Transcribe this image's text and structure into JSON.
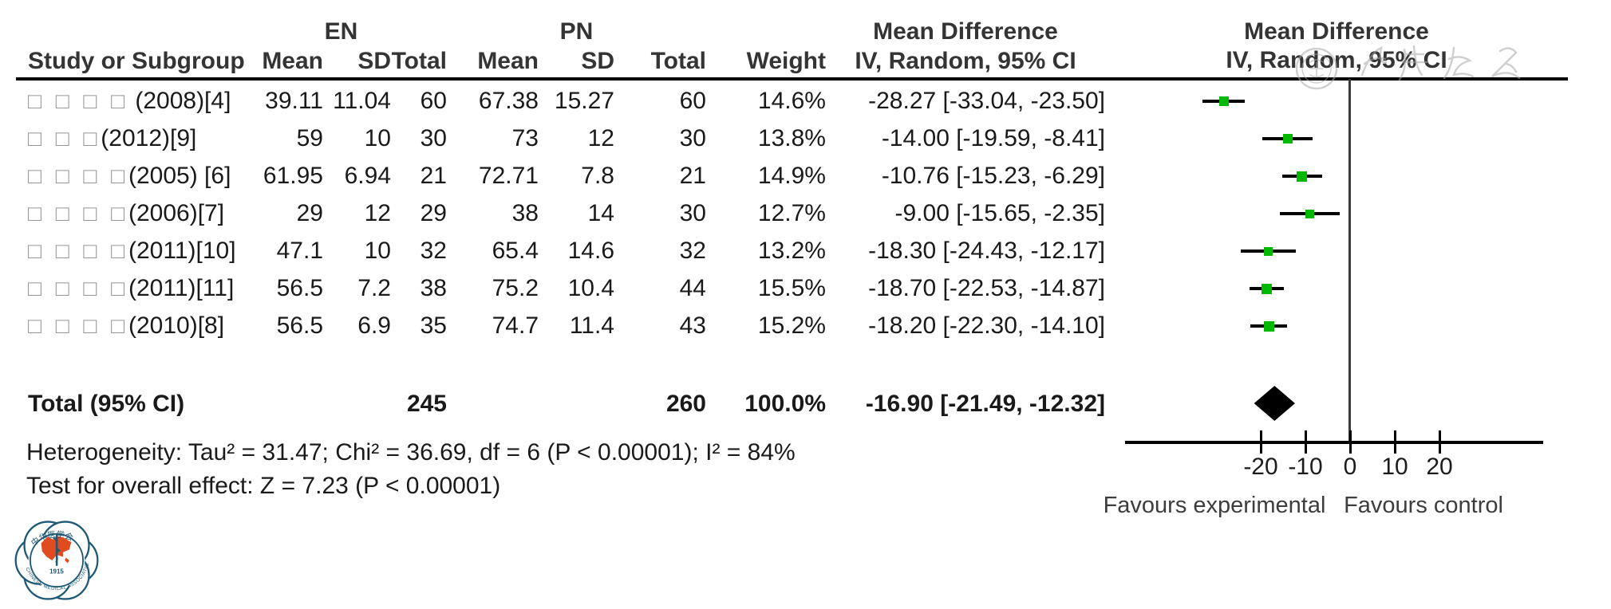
{
  "header": {
    "group1": "EN",
    "group2": "PN",
    "effect_title": "Mean Difference",
    "effect_sub": "IV, Random, 95% CI",
    "col_study": "Study or Subgroup",
    "col_mean": "Mean",
    "col_sd": "SD",
    "col_total": "Total",
    "col_weight": "Weight"
  },
  "chart_data": {
    "type": "forest",
    "effect_measure": "Mean Difference",
    "model": "IV, Random, 95% CI",
    "marker_color": "#00b800",
    "studies": [
      {
        "name_boxes": "□ □ □ □",
        "name_label": " (2008)[4]",
        "en_mean": "39.11",
        "en_sd": "11.04",
        "en_total": "60",
        "pn_mean": "67.38",
        "pn_sd": "15.27",
        "pn_total": "60",
        "weight": "14.6%",
        "weight_pct": 14.6,
        "ci_text": "-28.27 [-33.04, -23.50]",
        "md": -28.27,
        "ci_lo": -33.04,
        "ci_hi": -23.5
      },
      {
        "name_boxes": "□ □ □",
        "name_label": "(2012)[9]",
        "en_mean": "59",
        "en_sd": "10",
        "en_total": "30",
        "pn_mean": "73",
        "pn_sd": "12",
        "pn_total": "30",
        "weight": "13.8%",
        "weight_pct": 13.8,
        "ci_text": "-14.00 [-19.59, -8.41]",
        "md": -14.0,
        "ci_lo": -19.59,
        "ci_hi": -8.41
      },
      {
        "name_boxes": "□ □ □ □",
        "name_label": "(2005) [6]",
        "en_mean": "61.95",
        "en_sd": "6.94",
        "en_total": "21",
        "pn_mean": "72.71",
        "pn_sd": "7.8",
        "pn_total": "21",
        "weight": "14.9%",
        "weight_pct": 14.9,
        "ci_text": "-10.76 [-15.23, -6.29]",
        "md": -10.76,
        "ci_lo": -15.23,
        "ci_hi": -6.29
      },
      {
        "name_boxes": "□ □ □ □",
        "name_label": "(2006)[7]",
        "en_mean": "29",
        "en_sd": "12",
        "en_total": "29",
        "pn_mean": "38",
        "pn_sd": "14",
        "pn_total": "30",
        "weight": "12.7%",
        "weight_pct": 12.7,
        "ci_text": "-9.00 [-15.65, -2.35]",
        "md": -9.0,
        "ci_lo": -15.65,
        "ci_hi": -2.35
      },
      {
        "name_boxes": "□ □ □ □",
        "name_label": "(2011)[10]",
        "en_mean": "47.1",
        "en_sd": "10",
        "en_total": "32",
        "pn_mean": "65.4",
        "pn_sd": "14.6",
        "pn_total": "32",
        "weight": "13.2%",
        "weight_pct": 13.2,
        "ci_text": "-18.30 [-24.43, -12.17]",
        "md": -18.3,
        "ci_lo": -24.43,
        "ci_hi": -12.17
      },
      {
        "name_boxes": "□ □ □ □",
        "name_label": "(2011)[11]",
        "en_mean": "56.5",
        "en_sd": "7.2",
        "en_total": "38",
        "pn_mean": "75.2",
        "pn_sd": "10.4",
        "pn_total": "44",
        "weight": "15.5%",
        "weight_pct": 15.5,
        "ci_text": "-18.70 [-22.53, -14.87]",
        "md": -18.7,
        "ci_lo": -22.53,
        "ci_hi": -14.87
      },
      {
        "name_boxes": "□ □ □ □",
        "name_label": "(2010)[8]",
        "en_mean": "56.5",
        "en_sd": "6.9",
        "en_total": "35",
        "pn_mean": "74.7",
        "pn_sd": "11.4",
        "pn_total": "43",
        "weight": "15.2%",
        "weight_pct": 15.2,
        "ci_text": "-18.20 [-22.30, -14.10]",
        "md": -18.2,
        "ci_lo": -22.3,
        "ci_hi": -14.1
      }
    ],
    "total": {
      "label": "Total (95% CI)",
      "en_total": "245",
      "pn_total": "260",
      "weight": "100.0%",
      "ci_text": "-16.90 [-21.49, -12.32]",
      "md": -16.9,
      "ci_lo": -21.49,
      "ci_hi": -12.32
    },
    "axis": {
      "ticks": [
        -20,
        -10,
        0,
        10,
        20
      ],
      "tick_labels": [
        "-20",
        "-10",
        "0",
        "10",
        "20"
      ],
      "left_label": "Favours experimental",
      "right_label": "Favours control"
    }
  },
  "footer": {
    "heterogeneity": "Heterogeneity: Tau² = 31.47; Chi² = 36.69, df = 6 (P < 0.00001); I² = 84%",
    "overall_effect": "Test for overall effect: Z = 7.23 (P < 0.00001)"
  },
  "logo": {
    "year": "1915",
    "ring_text": "CHINESE MEDICAL ASSOCIATION",
    "top_text": "中华医学会"
  },
  "colors": {
    "marker_green": "#00b800",
    "logo_blue": "#1d5877",
    "logo_red": "#e04b1f",
    "watermark_gray": "#a8a8a8"
  }
}
